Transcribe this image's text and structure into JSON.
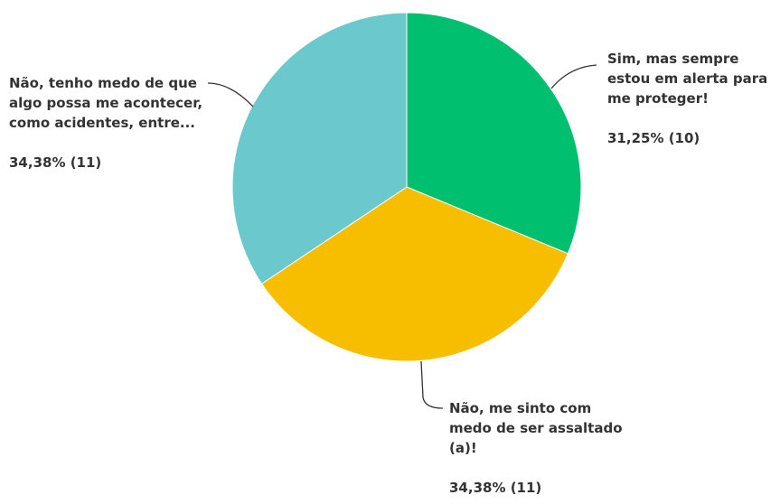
{
  "chart_data": {
    "type": "pie",
    "categories": [
      "Sim, mas sempre estou em alerta para me proteger!",
      "Não, me sinto com medo de ser assaltado (a)!",
      "Não, tenho medo de que algo possa me acontecer, como acidentes, entre..."
    ],
    "values": [
      31.25,
      34.38,
      34.38
    ],
    "value_labels": [
      "31,25% (10)",
      "34,38% (11)",
      "34,38% (11)"
    ],
    "colors": [
      "#00bf6f",
      "#f7be00",
      "#6bc8cd"
    ]
  }
}
